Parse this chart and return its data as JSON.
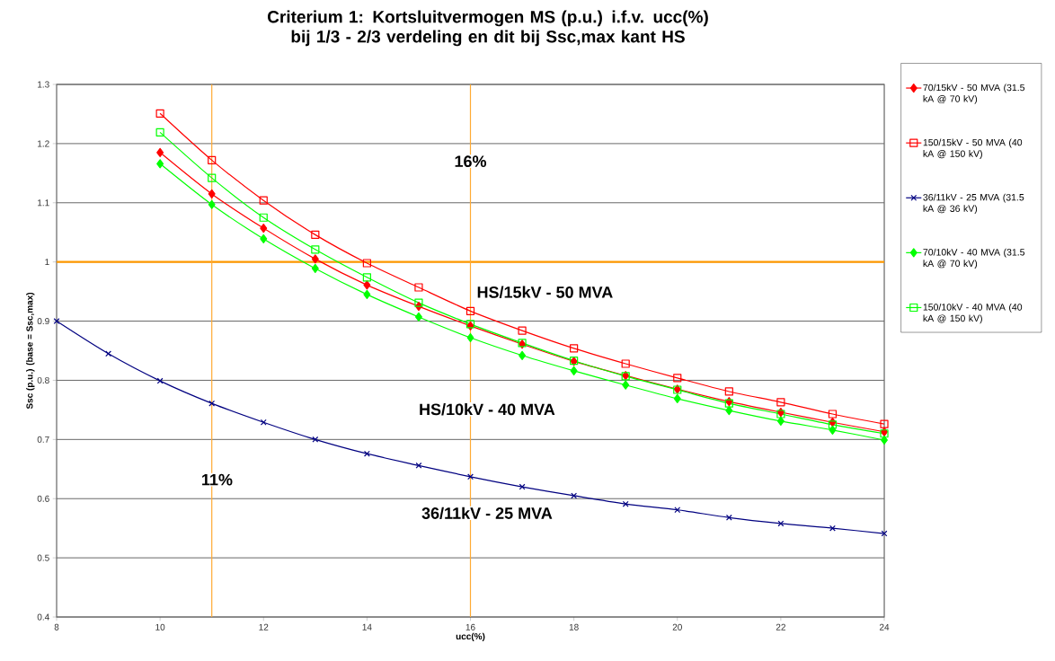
{
  "chart_data": {
    "type": "line",
    "title": "Criterium 1: Kortsluitvermogen MS (p.u.) i.f.v. ucc(%)  bij 1/3 - 2/3 verdeling en dit bij Ssc,max kant HS",
    "xlabel": "ucc(%)",
    "ylabel": "Ssc (p.u.) (base = Ssc,max)",
    "xlim": [
      8,
      24
    ],
    "xticks": [
      8,
      10,
      12,
      14,
      16,
      18,
      20,
      22,
      24
    ],
    "ylim": [
      0.4,
      1.3
    ],
    "yticks": [
      0.4,
      0.5,
      0.6,
      0.7,
      0.8,
      0.9,
      1,
      1.1,
      1.2,
      1.3
    ],
    "grid": "y",
    "legend": "right",
    "series": [
      {
        "name": "70/15kV - 50 MVA (31.5 kA @ 70 kV)",
        "color": "#ff0000",
        "marker": "diamond",
        "x": [
          10,
          11,
          12,
          13,
          14,
          15,
          16,
          17,
          18,
          19,
          20,
          21,
          22,
          23,
          24
        ],
        "values": [
          1.185,
          1.115,
          1.057,
          1.005,
          0.961,
          0.925,
          0.892,
          0.861,
          0.832,
          0.808,
          0.785,
          0.764,
          0.746,
          0.729,
          0.713
        ]
      },
      {
        "name": "150/15kV - 50 MVA (40 kA @ 150 kV)",
        "color": "#ff0000",
        "marker": "square",
        "x": [
          10,
          11,
          12,
          13,
          14,
          15,
          16,
          17,
          18,
          19,
          20,
          21,
          22,
          23,
          24
        ],
        "values": [
          1.251,
          1.172,
          1.104,
          1.046,
          0.998,
          0.957,
          0.917,
          0.884,
          0.854,
          0.828,
          0.804,
          0.781,
          0.763,
          0.743,
          0.726
        ]
      },
      {
        "name": "36/11kV - 25 MVA (31.5 kA @ 36 kV)",
        "color": "#000080",
        "marker": "cross",
        "x": [
          8,
          9,
          10,
          11,
          12,
          13,
          14,
          15,
          16,
          17,
          18,
          19,
          20,
          21,
          22,
          23,
          24
        ],
        "values": [
          0.9,
          0.845,
          0.799,
          0.761,
          0.729,
          0.7,
          0.676,
          0.656,
          0.637,
          0.62,
          0.605,
          0.591,
          0.581,
          0.568,
          0.558,
          0.55,
          0.541
        ]
      },
      {
        "name": "70/10kV - 40 MVA (31.5 kA @ 70 kV)",
        "color": "#00ff00",
        "marker": "diamond",
        "x": [
          10,
          11,
          12,
          13,
          14,
          15,
          16,
          17,
          18,
          19,
          20,
          21,
          22,
          23,
          24
        ],
        "values": [
          1.166,
          1.097,
          1.039,
          0.989,
          0.945,
          0.907,
          0.872,
          0.842,
          0.816,
          0.792,
          0.769,
          0.749,
          0.731,
          0.716,
          0.699
        ]
      },
      {
        "name": "150/10kV - 40 MVA (40 kA @ 150 kV)",
        "color": "#00ff00",
        "marker": "square",
        "x": [
          10,
          11,
          12,
          13,
          14,
          15,
          16,
          17,
          18,
          19,
          20,
          21,
          22,
          23,
          24
        ],
        "values": [
          1.219,
          1.142,
          1.075,
          1.021,
          0.974,
          0.931,
          0.895,
          0.863,
          0.833,
          0.807,
          0.784,
          0.761,
          0.743,
          0.725,
          0.71
        ]
      }
    ],
    "ref_lines": [
      {
        "axis": "y",
        "value": 1,
        "color": "#ff9900"
      },
      {
        "axis": "x",
        "value": 16,
        "color": "#ffaa33"
      },
      {
        "axis": "x",
        "value": 11,
        "color": "#ffaa33"
      }
    ],
    "annotations": [
      {
        "text": "16%",
        "x": 16,
        "y": 1.17
      },
      {
        "text": "11%",
        "x": 11.1,
        "y": 0.632
      },
      "HS/15kV - 50 MVA",
      "HS/10kV - 40 MVA",
      "36/11kV - 25 MVA"
    ]
  }
}
